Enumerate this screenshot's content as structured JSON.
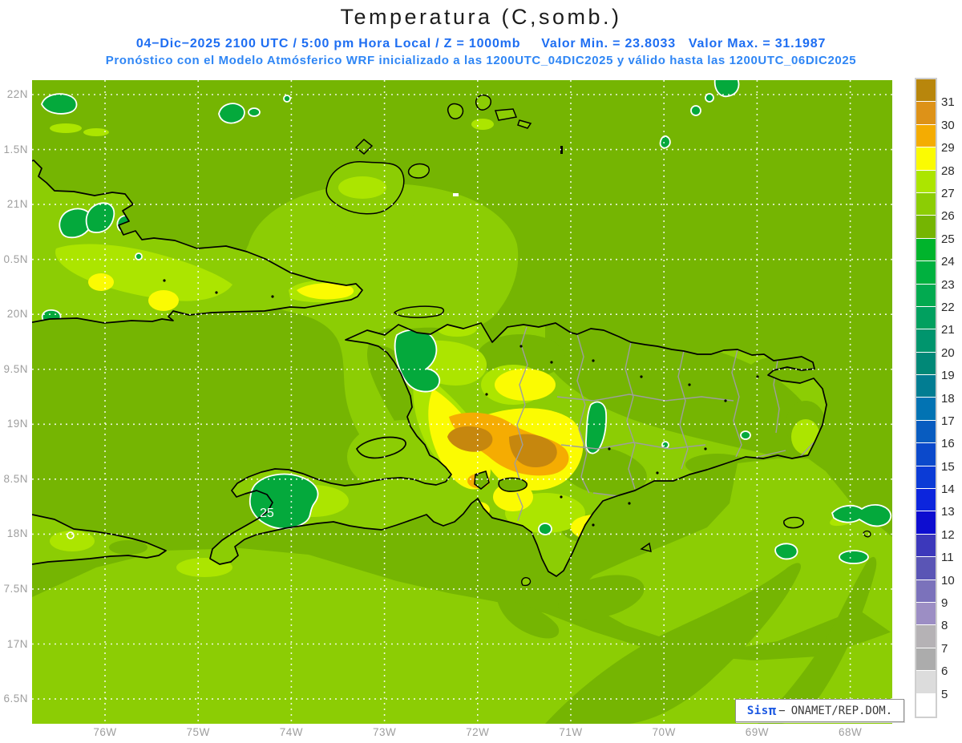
{
  "title": "Temperatura (C,somb.)",
  "header": {
    "time_info": "04−Dic−2025  2100 UTC / 5:00 pm Hora Local / Z = 1000mb",
    "min_label": "Valor Min. = 23.8033",
    "max_label": "Valor Max. = 31.1987",
    "model_info": "Pronóstico con el Modelo Atmósferico WRF inicializado a las 1200UTC_04DIC2025 y válido hasta las 1200UTC_06DIC2025"
  },
  "map": {
    "lat_labels": [
      "22N",
      "1.5N",
      "21N",
      "0.5N",
      "20N",
      "9.5N",
      "19N",
      "8.5N",
      "18N",
      "7.5N",
      "17N",
      "6.5N"
    ],
    "lon_labels": [
      "76W",
      "75W",
      "74W",
      "73W",
      "72W",
      "71W",
      "70W",
      "69W",
      "68W"
    ],
    "contour_label": "25"
  },
  "colorbar": {
    "tick_labels": [
      "31",
      "30",
      "29",
      "28",
      "27",
      "26",
      "25",
      "24",
      "23",
      "22",
      "21",
      "20",
      "19",
      "18",
      "17",
      "16",
      "15",
      "14",
      "13",
      "12",
      "11",
      "10",
      "9",
      "8",
      "7",
      "6",
      "5"
    ],
    "cell_colors": [
      "#b8860c",
      "#dd9218",
      "#f4ac02",
      "#fbfb02",
      "#ace500",
      "#8ccd04",
      "#75b502",
      "#00b42c",
      "#00b13f",
      "#02aa50",
      "#01a05f",
      "#00956d",
      "#018877",
      "#027d92",
      "#0273b3",
      "#085cc0",
      "#0b49cb",
      "#0b3bd6",
      "#0c25dd",
      "#0d0dd0",
      "#3c38bb",
      "#5a55b5",
      "#7b72bb",
      "#9c8ec4",
      "#b5b2b5",
      "#acacac",
      "#dcdcdc",
      "#ffffff"
    ]
  },
  "credit": {
    "brand": "Sis",
    "pi_symbol": "π",
    "separator": "−",
    "organization": "ONAMET/REP.DOM."
  },
  "palette": {
    "header_blue": "#1e6ef2",
    "model_blue": "#2f86f5",
    "axis_gray": "#9e9e9e",
    "sea_base": "#75b502",
    "sea_warm": "#8ccd04",
    "land_warm": "#ace500",
    "land_hot": "#fbfb02",
    "land_very_hot": "#f5ac02",
    "land_hottest": "#c6870e",
    "cold_patch": "#04a93c"
  }
}
